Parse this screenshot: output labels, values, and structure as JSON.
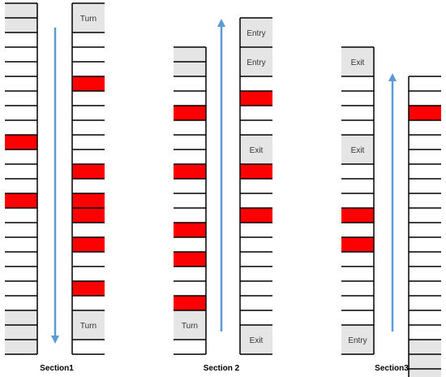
{
  "colors": {
    "occupied": "#ff0000",
    "empty": "#ffffff",
    "zone": "#e5e5e5",
    "line": "#000000",
    "arrow": "#5b9bd5"
  },
  "sections": [
    {
      "label": "Section1",
      "arrow_direction": "down",
      "columns": [
        {
          "name": "section1-left-column",
          "slots": [
            {
              "type": "zone"
            },
            {
              "type": "zone"
            },
            {
              "type": "empty"
            },
            {
              "type": "empty"
            },
            {
              "type": "empty"
            },
            {
              "type": "empty"
            },
            {
              "type": "empty"
            },
            {
              "type": "empty"
            },
            {
              "type": "empty"
            },
            {
              "type": "occupied"
            },
            {
              "type": "empty"
            },
            {
              "type": "empty"
            },
            {
              "type": "empty"
            },
            {
              "type": "occupied"
            },
            {
              "type": "empty"
            },
            {
              "type": "empty"
            },
            {
              "type": "empty"
            },
            {
              "type": "empty"
            },
            {
              "type": "empty"
            },
            {
              "type": "empty"
            },
            {
              "type": "empty"
            },
            {
              "type": "zone"
            },
            {
              "type": "zone"
            },
            {
              "type": "zone"
            }
          ]
        },
        {
          "name": "section1-right-column",
          "slots": [
            {
              "type": "zone",
              "label": "Turn",
              "span": 2
            },
            {
              "type": "empty"
            },
            {
              "type": "empty"
            },
            {
              "type": "empty"
            },
            {
              "type": "occupied"
            },
            {
              "type": "empty"
            },
            {
              "type": "empty"
            },
            {
              "type": "empty"
            },
            {
              "type": "empty"
            },
            {
              "type": "empty"
            },
            {
              "type": "occupied"
            },
            {
              "type": "empty"
            },
            {
              "type": "occupied"
            },
            {
              "type": "occupied"
            },
            {
              "type": "empty"
            },
            {
              "type": "occupied"
            },
            {
              "type": "empty"
            },
            {
              "type": "empty"
            },
            {
              "type": "occupied"
            },
            {
              "type": "empty"
            },
            {
              "type": "zone",
              "label": "Turn",
              "span": 2
            },
            {
              "type": "empty"
            }
          ]
        }
      ]
    },
    {
      "label": "Section 2",
      "arrow_direction": "up",
      "columns": [
        {
          "name": "section2-left-column",
          "slots": [
            {
              "type": "zone"
            },
            {
              "type": "zone"
            },
            {
              "type": "empty"
            },
            {
              "type": "empty"
            },
            {
              "type": "occupied"
            },
            {
              "type": "empty"
            },
            {
              "type": "empty"
            },
            {
              "type": "empty"
            },
            {
              "type": "occupied"
            },
            {
              "type": "empty"
            },
            {
              "type": "empty"
            },
            {
              "type": "empty"
            },
            {
              "type": "occupied"
            },
            {
              "type": "empty"
            },
            {
              "type": "occupied"
            },
            {
              "type": "empty"
            },
            {
              "type": "empty"
            },
            {
              "type": "occupied"
            },
            {
              "type": "zone",
              "label": "Turn",
              "span": 2
            },
            {
              "type": "empty"
            }
          ]
        },
        {
          "name": "section2-right-column",
          "slots": [
            {
              "type": "zone",
              "label": "Entry",
              "span": 2
            },
            {
              "type": "zone",
              "label": "Entry",
              "span": 2
            },
            {
              "type": "empty"
            },
            {
              "type": "occupied"
            },
            {
              "type": "empty"
            },
            {
              "type": "empty"
            },
            {
              "type": "zone",
              "label": "Exit",
              "span": 2
            },
            {
              "type": "occupied"
            },
            {
              "type": "empty"
            },
            {
              "type": "empty"
            },
            {
              "type": "occupied"
            },
            {
              "type": "empty"
            },
            {
              "type": "empty"
            },
            {
              "type": "empty"
            },
            {
              "type": "empty"
            },
            {
              "type": "empty"
            },
            {
              "type": "empty"
            },
            {
              "type": "empty"
            },
            {
              "type": "zone",
              "label": "Exit",
              "span": 2
            }
          ]
        }
      ]
    },
    {
      "label": "Section3",
      "arrow_direction": "up",
      "columns": [
        {
          "name": "section3-left-column",
          "slots": [
            {
              "type": "zone",
              "label": "Exit",
              "span": 2
            },
            {
              "type": "empty"
            },
            {
              "type": "empty"
            },
            {
              "type": "empty"
            },
            {
              "type": "empty"
            },
            {
              "type": "zone",
              "label": "Exit",
              "span": 2
            },
            {
              "type": "empty"
            },
            {
              "type": "empty"
            },
            {
              "type": "empty"
            },
            {
              "type": "occupied"
            },
            {
              "type": "empty"
            },
            {
              "type": "occupied"
            },
            {
              "type": "empty"
            },
            {
              "type": "empty"
            },
            {
              "type": "empty"
            },
            {
              "type": "empty"
            },
            {
              "type": "empty"
            },
            {
              "type": "zone",
              "label": "Entry",
              "span": 2
            }
          ]
        },
        {
          "name": "section3-right-column",
          "slots": [
            {
              "type": "empty"
            },
            {
              "type": "empty"
            },
            {
              "type": "occupied"
            },
            {
              "type": "empty"
            },
            {
              "type": "empty"
            },
            {
              "type": "empty"
            },
            {
              "type": "empty"
            },
            {
              "type": "empty"
            },
            {
              "type": "empty"
            },
            {
              "type": "empty"
            },
            {
              "type": "empty"
            },
            {
              "type": "empty"
            },
            {
              "type": "empty"
            },
            {
              "type": "empty"
            },
            {
              "type": "empty"
            },
            {
              "type": "empty"
            },
            {
              "type": "empty"
            },
            {
              "type": "empty"
            },
            {
              "type": "zone"
            },
            {
              "type": "zone"
            },
            {
              "type": "zone"
            }
          ]
        }
      ]
    }
  ]
}
